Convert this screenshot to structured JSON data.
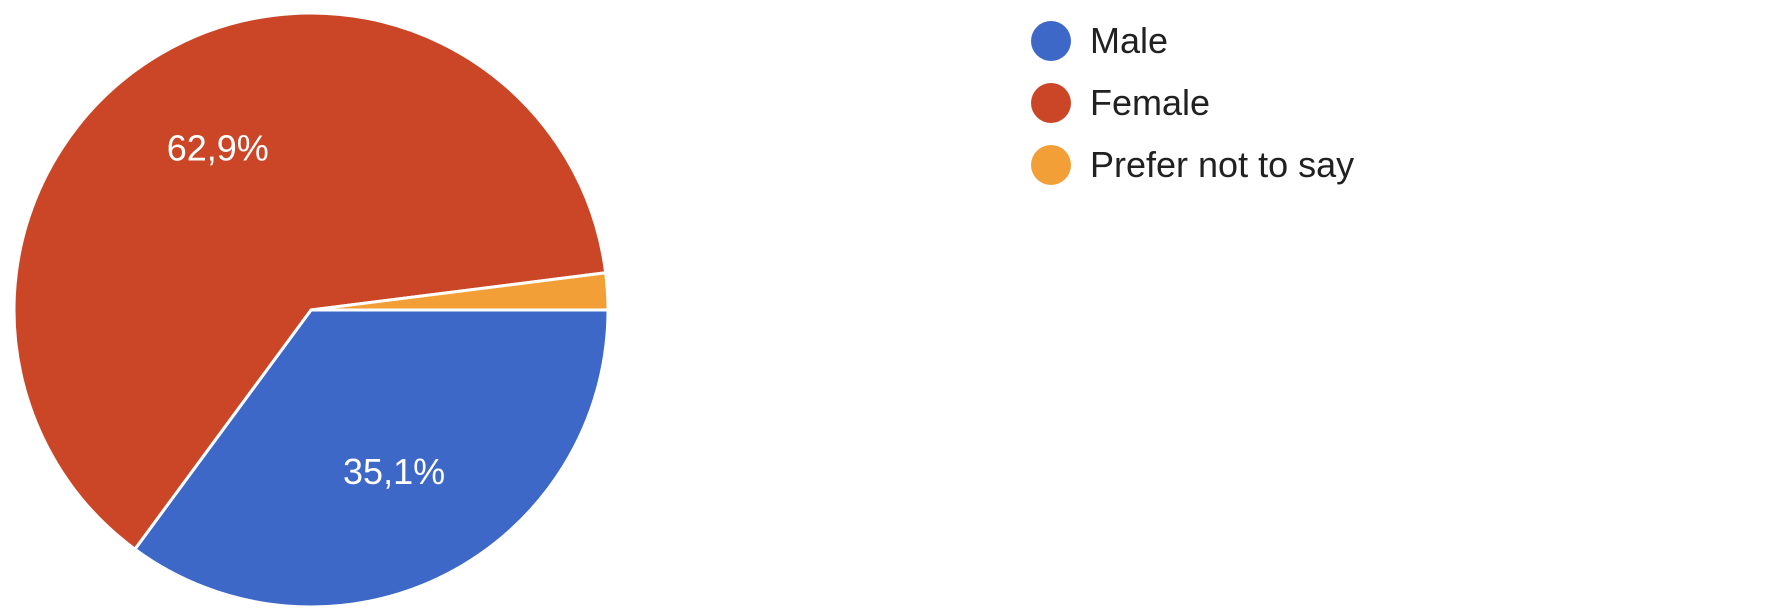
{
  "chart_data": {
    "type": "pie",
    "slices": [
      {
        "label": "Male",
        "value": 35.1,
        "display": "35,1%",
        "color": "#3d68c7"
      },
      {
        "label": "Female",
        "value": 62.9,
        "display": "62,9%",
        "color": "#cb4627"
      },
      {
        "label": "Prefer not to say",
        "value": 2.0,
        "display": "",
        "color": "#f29f38"
      }
    ],
    "legend_position": "top-right"
  }
}
